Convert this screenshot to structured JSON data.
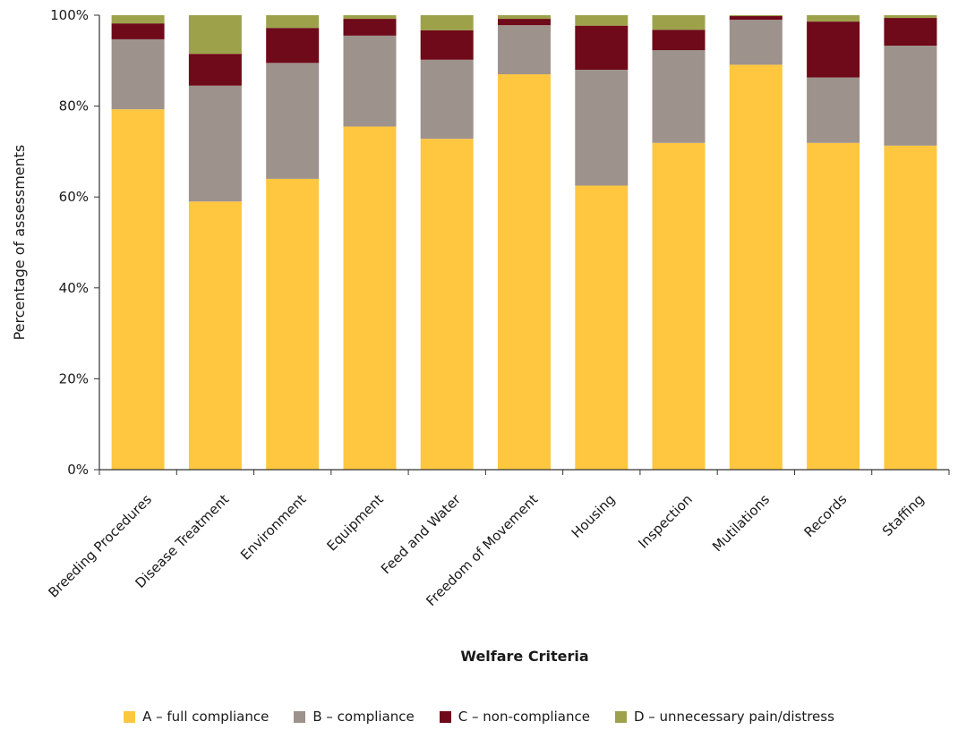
{
  "chart_data": {
    "type": "bar",
    "stacked": true,
    "title": "",
    "xlabel": "Welfare Criteria",
    "ylabel": "Percentage of assessments",
    "ylim": [
      0,
      100
    ],
    "y_ticks": [
      "0%",
      "20%",
      "40%",
      "60%",
      "80%",
      "100%"
    ],
    "y_tick_values": [
      0,
      20,
      40,
      60,
      80,
      100
    ],
    "grid": false,
    "legend_position": "bottom",
    "categories": [
      "Breeding Procedures",
      "Disease Treatment",
      "Environment",
      "Equipment",
      "Feed and Water",
      "Freedom of Movement",
      "Housing",
      "Inspection",
      "Mutilations",
      "Records",
      "Staffing"
    ],
    "series": [
      {
        "name": "A – full compliance",
        "color": "#FFC740",
        "values": [
          79.3,
          59.0,
          64.0,
          75.5,
          72.8,
          87.0,
          62.5,
          71.9,
          89.1,
          71.9,
          71.3
        ]
      },
      {
        "name": "B – compliance",
        "color": "#9E928C",
        "values": [
          15.4,
          25.5,
          25.5,
          20.0,
          17.4,
          10.8,
          25.5,
          20.4,
          9.9,
          14.4,
          22.0
        ]
      },
      {
        "name": "C – non-compliance",
        "color": "#6E0A19",
        "values": [
          3.5,
          7.0,
          7.7,
          3.7,
          6.5,
          1.4,
          9.7,
          4.5,
          0.8,
          12.3,
          6.1
        ]
      },
      {
        "name": "D – unnecessary pain/distress",
        "color": "#9DA24A",
        "values": [
          1.8,
          8.5,
          2.8,
          0.8,
          3.3,
          0.8,
          2.3,
          3.2,
          0.2,
          1.4,
          0.6
        ]
      }
    ]
  }
}
